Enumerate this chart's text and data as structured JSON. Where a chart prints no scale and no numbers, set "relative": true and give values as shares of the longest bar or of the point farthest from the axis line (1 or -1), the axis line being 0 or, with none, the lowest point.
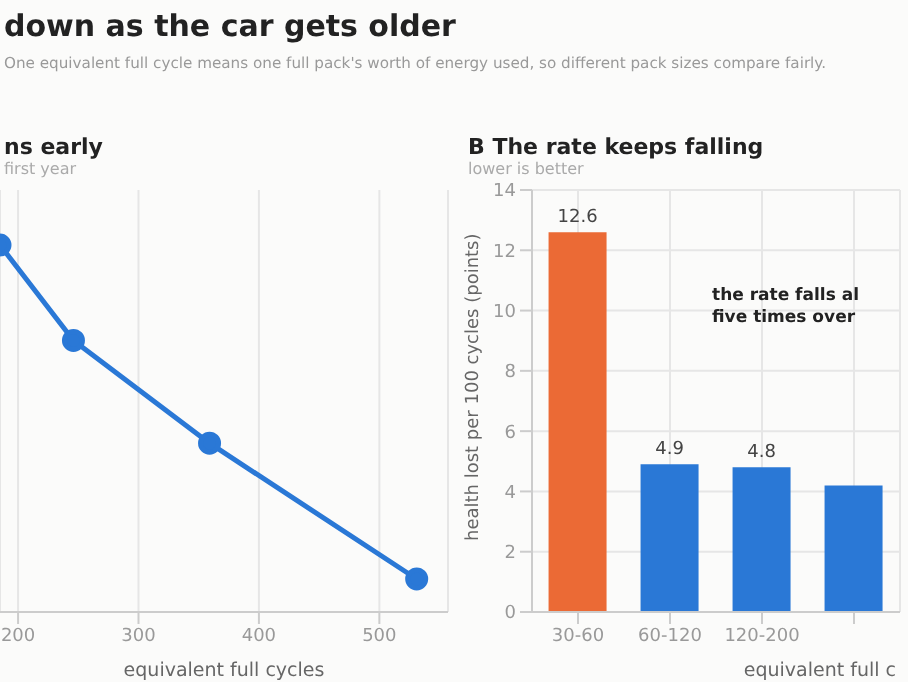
{
  "chart_data": [
    {
      "type": "other",
      "title": "down as the car gets older",
      "subtitle": "One equivalent full cycle means one full pack's worth of energy used, so different pack sizes compare fairly."
    },
    {
      "type": "line",
      "title": "ns early",
      "subtitle": "first year",
      "xlabel": "equivalent full cycles",
      "relative": true,
      "x": [
        185,
        246,
        359,
        531
      ],
      "series": [
        {
          "color": "#2a78d6",
          "values": [
            1,
            0.74,
            0.46,
            0.09
          ]
        }
      ],
      "xlim": [
        185,
        557
      ],
      "xticks": [
        200,
        300,
        400,
        500
      ],
      "grid": "x",
      "marker": "circle"
    },
    {
      "type": "bar",
      "title": "B  The rate keeps falling",
      "subtitle": "lower is better",
      "xlabel": "equivalent full c",
      "ylabel": "health lost per 100 cycles (points)",
      "categories": [
        "30-60",
        "60-120",
        "120-200",
        null
      ],
      "values": [
        12.6,
        4.9,
        4.8,
        4.2
      ],
      "colors": [
        "#eb6a35",
        "#2a78d6",
        "#2a78d6",
        "#2a78d6"
      ],
      "value_labels": [
        "12.6",
        "4.9",
        "4.8",
        null
      ],
      "ylim": [
        0,
        14
      ],
      "yticks": [
        0,
        2,
        4,
        6,
        8,
        10,
        12,
        14
      ],
      "grid": true,
      "annotations": [
        "the rate falls al\nfive times over"
      ]
    }
  ]
}
